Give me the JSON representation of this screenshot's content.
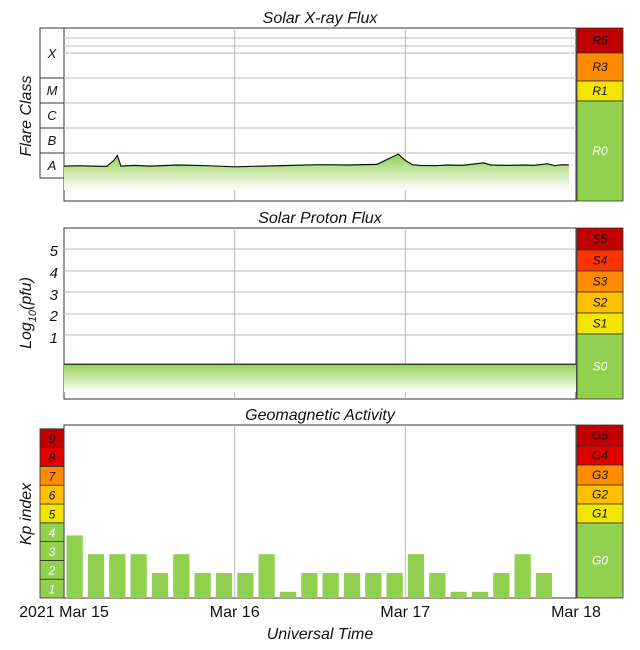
{
  "colors": {
    "green": "#92d050",
    "green_light": "#d4ecbd",
    "yellow": "#f2e600",
    "orange_light": "#ffc000",
    "orange": "#ff8c00",
    "red_orange": "#ff3300",
    "red": "#e00000",
    "dark_red": "#c00000",
    "grid": "#bbbbbb",
    "frame": "#333333"
  },
  "chart_data": [
    {
      "type": "area",
      "title": "Solar X-ray Flux",
      "ylabel": "Flare Class",
      "y_scale": "log",
      "class_labels": [
        "A",
        "B",
        "C",
        "M",
        "X"
      ],
      "x_ticks": [
        "2021 Mar 15",
        "Mar 16",
        "Mar 17",
        "Mar 18"
      ],
      "xlim": [
        "2021-03-15T00:00",
        "2021-03-18T00:00"
      ],
      "x": [
        "2021-03-15T00:00",
        "2021-03-15T02:00",
        "2021-03-15T04:00",
        "2021-03-15T06:00",
        "2021-03-15T07:00",
        "2021-03-15T07:30",
        "2021-03-15T08:00",
        "2021-03-15T10:00",
        "2021-03-15T12:00",
        "2021-03-15T16:00",
        "2021-03-15T20:00",
        "2021-03-16T00:00",
        "2021-03-16T04:00",
        "2021-03-16T08:00",
        "2021-03-16T12:00",
        "2021-03-16T16:00",
        "2021-03-16T20:00",
        "2021-03-16T23:00",
        "2021-03-17T00:00",
        "2021-03-17T01:00",
        "2021-03-17T02:00",
        "2021-03-17T04:00",
        "2021-03-17T06:00",
        "2021-03-17T08:00",
        "2021-03-17T11:00",
        "2021-03-17T12:00",
        "2021-03-17T14:00",
        "2021-03-17T17:00",
        "2021-03-17T18:00",
        "2021-03-17T20:00",
        "2021-03-17T21:00",
        "2021-03-17T22:00",
        "2021-03-17T23:00"
      ],
      "flux": [
        "3.0e-8",
        "3.1e-8",
        "3.0e-8",
        "2.9e-8",
        "5.0e-8",
        "8.0e-8",
        "3.0e-8",
        "3.2e-8",
        "3.0e-8",
        "3.3e-8",
        "3.1e-8",
        "2.8e-8",
        "3.0e-8",
        "3.2e-8",
        "3.4e-8",
        "3.3e-8",
        "3.5e-8",
        "9.0e-8",
        "5.0e-8",
        "3.4e-8",
        "3.2e-8",
        "3.1e-8",
        "3.3e-8",
        "3.2e-8",
        "4.0e-8",
        "3.3e-8",
        "3.2e-8",
        "3.3e-8",
        "3.2e-8",
        "3.7e-8",
        "3.1e-8",
        "3.4e-8",
        "3.3e-8"
      ],
      "scale": [
        {
          "label": "R5",
          "color": "#c00000"
        },
        {
          "label": "R3",
          "color": "#ff8c00"
        },
        {
          "label": "R1",
          "color": "#f2e600"
        },
        {
          "label": "R0",
          "color": "#92d050"
        }
      ]
    },
    {
      "type": "area",
      "title": "Solar Proton Flux",
      "ylabel_main": "Log",
      "ylabel_sub": "10",
      "ylabel_tail": "(pfu)",
      "y_ticks": [
        "1",
        "2",
        "3",
        "4",
        "5"
      ],
      "x": [
        "2021-03-15T00:00",
        "2021-03-18T00:00"
      ],
      "log10_pfu": [
        -0.35,
        -0.35
      ],
      "scale": [
        {
          "label": "S5",
          "color": "#c00000"
        },
        {
          "label": "S4",
          "color": "#ff3300"
        },
        {
          "label": "S3",
          "color": "#ff8c00"
        },
        {
          "label": "S2",
          "color": "#ffc000"
        },
        {
          "label": "S1",
          "color": "#f2e600"
        },
        {
          "label": "S0",
          "color": "#92d050"
        }
      ]
    },
    {
      "type": "bar",
      "title": "Geomagnetic Activity",
      "ylabel": "Kp index",
      "xlabel": "Universal Time",
      "kp_levels": [
        "1",
        "2",
        "3",
        "4",
        "5",
        "6",
        "7",
        "8",
        "9"
      ],
      "x_ticks": [
        "2021 Mar 15",
        "Mar 16",
        "Mar 17",
        "Mar 18"
      ],
      "values": [
        3.33,
        2.33,
        2.33,
        2.33,
        1.33,
        2.33,
        1.33,
        1.33,
        1.33,
        2.33,
        0.33,
        1.33,
        1.33,
        1.33,
        1.33,
        1.33,
        2.33,
        1.33,
        0.33,
        0.33,
        1.33,
        2.33,
        1.33,
        0
      ],
      "ylim": [
        0,
        9
      ],
      "scale": [
        {
          "label": "G5",
          "color": "#c00000"
        },
        {
          "label": "G4",
          "color": "#e00000"
        },
        {
          "label": "G3",
          "color": "#ff8c00"
        },
        {
          "label": "G2",
          "color": "#ffc000"
        },
        {
          "label": "G1",
          "color": "#f2e600"
        },
        {
          "label": "G0",
          "color": "#92d050"
        }
      ]
    }
  ]
}
